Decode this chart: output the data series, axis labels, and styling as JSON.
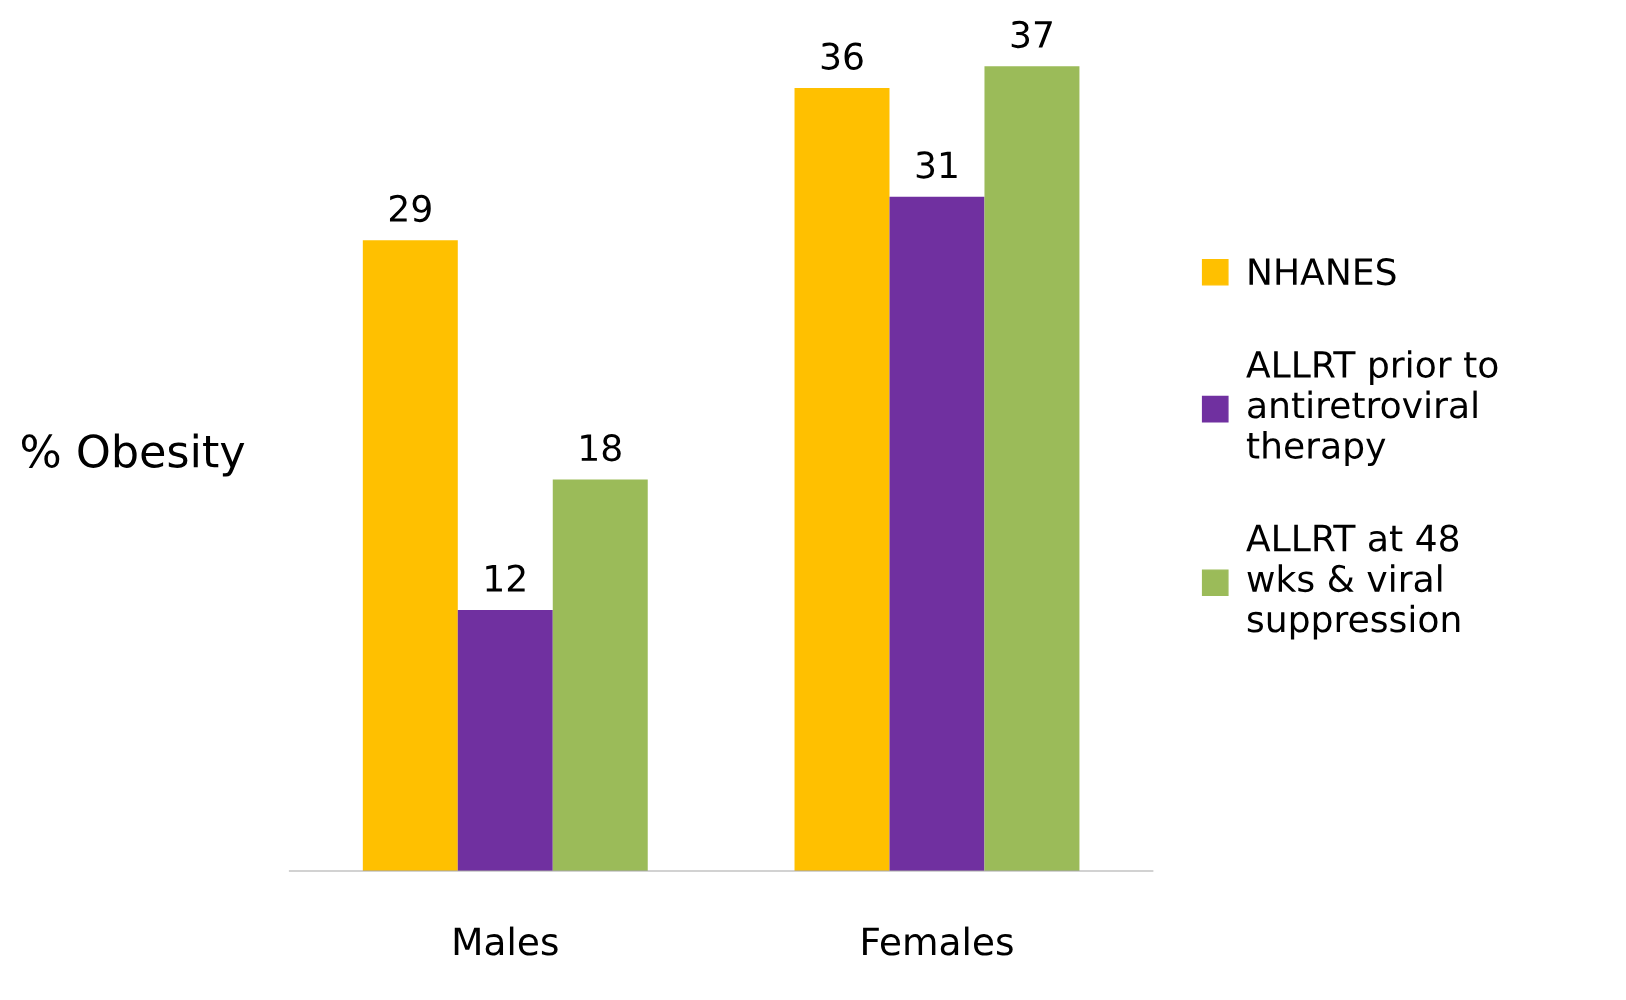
{
  "chart_data": {
    "type": "bar",
    "ylabel": "% Obesity",
    "categories": [
      "Males",
      "Females"
    ],
    "series": [
      {
        "name": "NHANES",
        "color": "#ffc000",
        "values": [
          29,
          36
        ]
      },
      {
        "name": "ALLRT prior to\nantiretroviral\ntherapy",
        "color": "#7030a0",
        "values": [
          12,
          31
        ]
      },
      {
        "name": "ALLRT at 48\nwks & viral\nsuppression",
        "color": "#9bbb59",
        "values": [
          18,
          37
        ]
      }
    ],
    "tick_labels": "x",
    "data_labels": true,
    "grid": false,
    "legend": "right"
  }
}
